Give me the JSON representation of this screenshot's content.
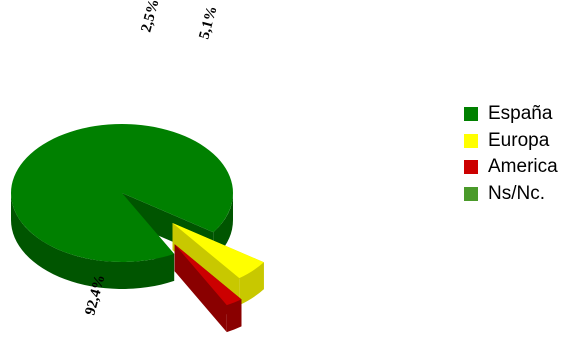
{
  "chart_data": {
    "type": "pie",
    "style": "3d-exploded",
    "title": "",
    "legend_position": "right",
    "series": [
      {
        "name": "España",
        "value": 92.4,
        "label": "92,4%",
        "color": "#008000",
        "side_color": "#005500"
      },
      {
        "name": "Europa",
        "value": 5.1,
        "label": "5,1%",
        "color": "#ffff00",
        "side_color": "#c8c800"
      },
      {
        "name": "America",
        "value": 2.5,
        "label": "2,5%",
        "color": "#cc0000",
        "side_color": "#8a0000"
      },
      {
        "name": "Ns/Nc.",
        "value": 0.0,
        "label": "",
        "color": "#4a9a2a",
        "side_color": "#326e1c"
      }
    ]
  }
}
